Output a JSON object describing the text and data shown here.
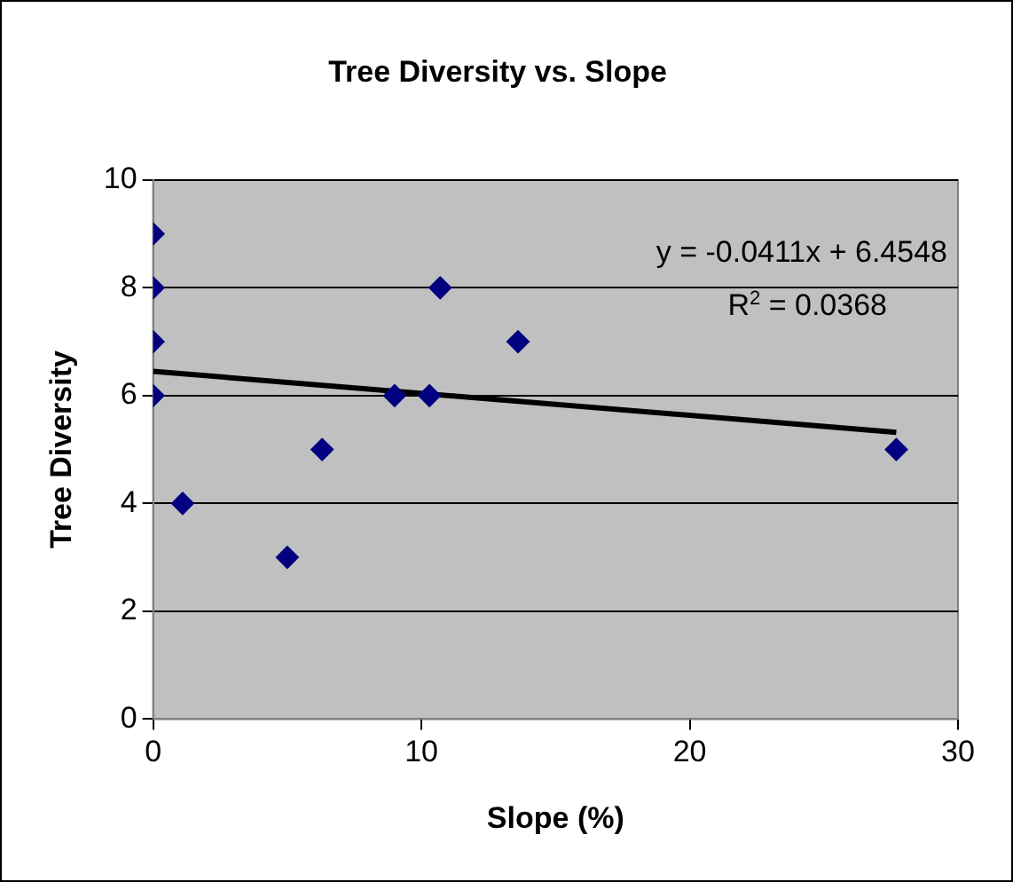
{
  "chart_data": {
    "type": "scatter",
    "title": "Tree Diversity vs. Slope",
    "xlabel": "Slope (%)",
    "ylabel": "Tree Diversity",
    "series": [
      {
        "type": "scatter",
        "color": "#000080",
        "x": [
          0,
          0,
          0,
          0,
          1.1,
          5.0,
          6.3,
          9.0,
          10.3,
          10.7,
          13.6,
          27.7
        ],
        "values": [
          9,
          8,
          7,
          6,
          4,
          3,
          5,
          6,
          6,
          8,
          7,
          5
        ]
      },
      {
        "type": "line",
        "color": "#000000",
        "x": [
          0,
          27.7
        ],
        "values": [
          6.45,
          5.32
        ],
        "marker": "none"
      }
    ],
    "annotations": [
      "y = -0.0411x + 6.4548",
      "R$^{2}$ = 0.0368"
    ],
    "xlim": [
      0,
      30
    ],
    "xticks": [
      0,
      10,
      20,
      30
    ],
    "ylim": [
      0,
      10
    ],
    "yticks": [
      0,
      2,
      4,
      6,
      8,
      10
    ],
    "grid": "y",
    "legend": false,
    "marker": "diamond",
    "line_style": "solid"
  }
}
